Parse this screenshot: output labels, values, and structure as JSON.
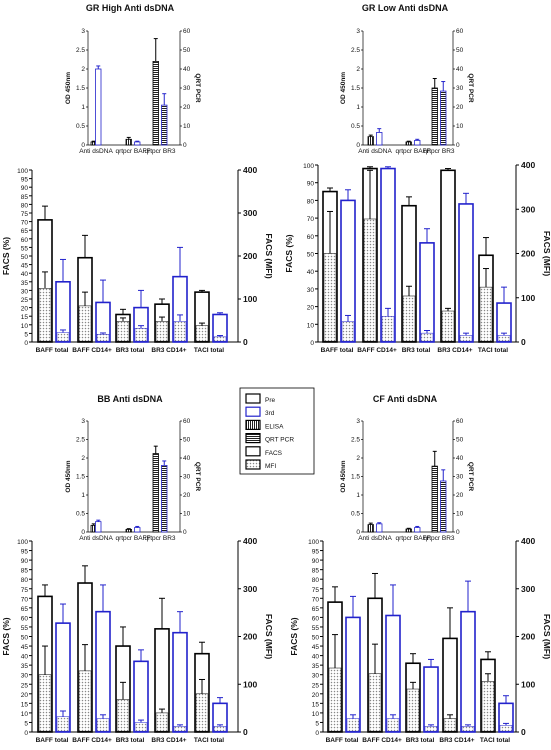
{
  "legend": {
    "items": [
      {
        "label": "Pre",
        "swatch": "black-outline"
      },
      {
        "label": "3rd",
        "swatch": "blue-outline"
      },
      {
        "label": "ELISA",
        "swatch": "vertical-hatch"
      },
      {
        "label": "QRT PCR",
        "swatch": "horizontal-hatch"
      },
      {
        "label": "FACS",
        "swatch": "plain"
      },
      {
        "label": "MFI",
        "swatch": "dots"
      }
    ],
    "placement": "center"
  },
  "colors": {
    "pre": "#000000",
    "third": "#2222cc",
    "mfi_dots": "#888888"
  },
  "chart_data": [
    {
      "panel": "GR High Anti dsDNA",
      "type": "bar",
      "title": "GR High Anti dsDNA",
      "upper": {
        "categories": [
          "Anti dsDNA",
          "qrtpcr BAFF",
          "qrtpcr BR3"
        ],
        "ylabel": "OD 450nm",
        "ylim": [
          0,
          3
        ],
        "y_ticks": [
          0,
          0.5,
          1,
          1.5,
          2,
          2.5,
          3
        ],
        "y2label": "QRT PCR",
        "y2lim": [
          0,
          60
        ],
        "y2_ticks": [
          0,
          10,
          20,
          30,
          40,
          50,
          60
        ],
        "pre": [
          {
            "v": 0.08,
            "e": 0.02
          },
          {
            "v": 0.15,
            "e": 0.05
          },
          {
            "v": 2.2,
            "e": 0.6
          }
        ],
        "third": [
          {
            "v": 2.0,
            "e": 0.08
          },
          {
            "v": 0.08,
            "e": 0.02
          },
          {
            "v": 1.05,
            "e": 0.3
          }
        ]
      },
      "lower": {
        "categories": [
          "BAFF total",
          "BAFF CD14+",
          "BR3 total",
          "BR3 CD14+",
          "TACI total"
        ],
        "ylabel": "FACS (%)",
        "ylim": [
          0,
          100
        ],
        "y_ticks": [
          0,
          5,
          10,
          15,
          20,
          25,
          30,
          35,
          40,
          45,
          50,
          55,
          60,
          65,
          70,
          75,
          80,
          85,
          90,
          95,
          100
        ],
        "y2label": "FACS (MFI)",
        "y2lim": [
          0,
          400
        ],
        "y2_ticks": [
          0,
          100,
          200,
          300,
          400
        ],
        "pre": [
          {
            "v": 71,
            "e": 8
          },
          {
            "v": 49,
            "e": 13
          },
          {
            "v": 16,
            "e": 3
          },
          {
            "v": 22,
            "e": 3
          },
          {
            "v": 29,
            "e": 1
          }
        ],
        "third": [
          {
            "v": 35,
            "e": 13
          },
          {
            "v": 23,
            "e": 13
          },
          {
            "v": 20,
            "e": 10
          },
          {
            "v": 38,
            "e": 17
          },
          {
            "v": 16,
            "e": 1
          }
        ],
        "pre_mfi": [
          {
            "v": 125,
            "e": 38
          },
          {
            "v": 84,
            "e": 32
          },
          {
            "v": 48,
            "e": 8
          },
          {
            "v": 48,
            "e": 10
          },
          {
            "v": 38,
            "e": 6
          }
        ],
        "third_mfi": [
          {
            "v": 22,
            "e": 6
          },
          {
            "v": 18,
            "e": 3
          },
          {
            "v": 32,
            "e": 6
          },
          {
            "v": 48,
            "e": 15
          },
          {
            "v": 12,
            "e": 3
          }
        ]
      }
    },
    {
      "panel": "GR Low Anti dsDNA",
      "type": "bar",
      "title": "GR Low Anti dsDNA",
      "upper": {
        "categories": [
          "Anti dsDNA",
          "qrtpcr BAFF",
          "qrtpcr BR3"
        ],
        "ylabel": "OD 450nm",
        "ylim": [
          0,
          3
        ],
        "y_ticks": [
          0,
          0.5,
          1,
          1.5,
          2,
          2.5,
          3
        ],
        "y2label": "QRT PCR",
        "y2lim": [
          0,
          60
        ],
        "y2_ticks": [
          0,
          10,
          20,
          30,
          40,
          50,
          60
        ],
        "pre": [
          {
            "v": 0.22,
            "e": 0.04
          },
          {
            "v": 0.08,
            "e": 0.02
          },
          {
            "v": 1.5,
            "e": 0.25
          }
        ],
        "third": [
          {
            "v": 0.33,
            "e": 0.1
          },
          {
            "v": 0.12,
            "e": 0.03
          },
          {
            "v": 1.42,
            "e": 0.25
          }
        ]
      },
      "lower": {
        "categories": [
          "BAFF total",
          "BAFF CD14+",
          "BR3 total",
          "BR3 CD14+",
          "TACI total"
        ],
        "ylabel": "FACS (%)",
        "ylim": [
          0,
          100
        ],
        "y_ticks": [
          0,
          10,
          20,
          30,
          40,
          50,
          60,
          70,
          80,
          90,
          100
        ],
        "y2label": "FACS (MFI)",
        "y2lim": [
          0,
          400
        ],
        "y2_ticks": [
          0,
          100,
          200,
          300,
          400
        ],
        "pre": [
          {
            "v": 85,
            "e": 2
          },
          {
            "v": 98,
            "e": 1
          },
          {
            "v": 77,
            "e": 5
          },
          {
            "v": 97,
            "e": 1
          },
          {
            "v": 49,
            "e": 10
          }
        ],
        "third": [
          {
            "v": 80,
            "e": 6
          },
          {
            "v": 98,
            "e": 1
          },
          {
            "v": 56,
            "e": 8
          },
          {
            "v": 78,
            "e": 6
          },
          {
            "v": 22,
            "e": 9
          }
        ],
        "pre_mfi": [
          {
            "v": 200,
            "e": 95
          },
          {
            "v": 278,
            "e": 110
          },
          {
            "v": 104,
            "e": 22
          },
          {
            "v": 70,
            "e": 6
          },
          {
            "v": 124,
            "e": 42
          }
        ],
        "third_mfi": [
          {
            "v": 46,
            "e": 14
          },
          {
            "v": 58,
            "e": 18
          },
          {
            "v": 20,
            "e": 6
          },
          {
            "v": 15,
            "e": 5
          },
          {
            "v": 15,
            "e": 5
          }
        ]
      }
    },
    {
      "panel": "BB Anti dsDNA",
      "type": "bar",
      "title": "BB Anti dsDNA",
      "upper": {
        "categories": [
          "Anti dsDNA",
          "qrtpcr BAFF",
          "qrtpcr BR3"
        ],
        "ylabel": "OD 450nm",
        "ylim": [
          0,
          3
        ],
        "y_ticks": [
          0,
          0.5,
          1,
          1.5,
          2,
          2.5,
          3
        ],
        "y2label": "QRT PCR",
        "y2lim": [
          0,
          60
        ],
        "y2_ticks": [
          0,
          10,
          20,
          30,
          40,
          50,
          60
        ],
        "pre": [
          {
            "v": 0.18,
            "e": 0.04
          },
          {
            "v": 0.07,
            "e": 0.02
          },
          {
            "v": 2.12,
            "e": 0.2
          }
        ],
        "third": [
          {
            "v": 0.28,
            "e": 0.04
          },
          {
            "v": 0.12,
            "e": 0.03
          },
          {
            "v": 1.8,
            "e": 0.12
          }
        ]
      },
      "lower": {
        "categories": [
          "BAFF total",
          "BAFF CD14+",
          "BR3 total",
          "BR3 CD14+",
          "TACI total"
        ],
        "ylabel": "FACS (%)",
        "ylim": [
          0,
          100
        ],
        "y_ticks": [
          0,
          5,
          10,
          15,
          20,
          25,
          30,
          35,
          40,
          45,
          50,
          55,
          60,
          65,
          70,
          75,
          80,
          85,
          90,
          95,
          100
        ],
        "y2label": "FACS (MFI)",
        "y2lim": [
          0,
          400
        ],
        "y2_ticks": [
          0,
          100,
          200,
          300,
          400
        ],
        "pre": [
          {
            "v": 71,
            "e": 6
          },
          {
            "v": 78,
            "e": 9
          },
          {
            "v": 45,
            "e": 10
          },
          {
            "v": 54,
            "e": 16
          },
          {
            "v": 41,
            "e": 6
          }
        ],
        "third": [
          {
            "v": 57,
            "e": 10
          },
          {
            "v": 63,
            "e": 14
          },
          {
            "v": 37,
            "e": 6
          },
          {
            "v": 52,
            "e": 11
          },
          {
            "v": 15,
            "e": 3
          }
        ],
        "pre_mfi": [
          {
            "v": 120,
            "e": 60
          },
          {
            "v": 128,
            "e": 55
          },
          {
            "v": 68,
            "e": 36
          },
          {
            "v": 40,
            "e": 8
          },
          {
            "v": 80,
            "e": 30
          }
        ],
        "third_mfi": [
          {
            "v": 32,
            "e": 12
          },
          {
            "v": 28,
            "e": 8
          },
          {
            "v": 20,
            "e": 5
          },
          {
            "v": 12,
            "e": 3
          },
          {
            "v": 12,
            "e": 3
          }
        ]
      }
    },
    {
      "panel": "CF Anti dsDNA",
      "type": "bar",
      "title": "CF Anti dsDNA",
      "upper": {
        "categories": [
          "Anti dsDNA",
          "qrtpcr BAFF",
          "qrtpcr BR3"
        ],
        "ylabel": "OD 450nm",
        "ylim": [
          0,
          3
        ],
        "y_ticks": [
          0,
          0.5,
          1,
          1.5,
          2,
          2.5,
          3
        ],
        "y2label": "QRT PCR",
        "y2lim": [
          0,
          60
        ],
        "y2_ticks": [
          0,
          10,
          20,
          30,
          40,
          50,
          60
        ],
        "pre": [
          {
            "v": 0.2,
            "e": 0.04
          },
          {
            "v": 0.08,
            "e": 0.02
          },
          {
            "v": 1.78,
            "e": 0.4
          }
        ],
        "third": [
          {
            "v": 0.22,
            "e": 0.03
          },
          {
            "v": 0.12,
            "e": 0.03
          },
          {
            "v": 1.38,
            "e": 0.3
          }
        ]
      },
      "lower": {
        "categories": [
          "BAFF total",
          "BAFF CD14+",
          "BR3 total",
          "BR3 CD14+",
          "TACI total"
        ],
        "ylabel": "FACS (%)",
        "ylim": [
          0,
          100
        ],
        "y_ticks": [
          0,
          5,
          10,
          15,
          20,
          25,
          30,
          35,
          40,
          45,
          50,
          55,
          60,
          65,
          70,
          75,
          80,
          85,
          90,
          95,
          100
        ],
        "y2label": "FACS (MFI)",
        "y2lim": [
          0,
          400
        ],
        "y2_ticks": [
          0,
          100,
          200,
          300,
          400
        ],
        "pre": [
          {
            "v": 68,
            "e": 8
          },
          {
            "v": 70,
            "e": 13
          },
          {
            "v": 36,
            "e": 5
          },
          {
            "v": 49,
            "e": 16
          },
          {
            "v": 38,
            "e": 4
          }
        ],
        "third": [
          {
            "v": 60,
            "e": 11
          },
          {
            "v": 61,
            "e": 16
          },
          {
            "v": 34,
            "e": 4
          },
          {
            "v": 63,
            "e": 16
          },
          {
            "v": 15,
            "e": 4
          }
        ],
        "pre_mfi": [
          {
            "v": 134,
            "e": 70
          },
          {
            "v": 122,
            "e": 62
          },
          {
            "v": 90,
            "e": 14
          },
          {
            "v": 28,
            "e": 8
          },
          {
            "v": 106,
            "e": 16
          }
        ],
        "third_mfi": [
          {
            "v": 28,
            "e": 8
          },
          {
            "v": 28,
            "e": 8
          },
          {
            "v": 12,
            "e": 3
          },
          {
            "v": 12,
            "e": 3
          },
          {
            "v": 14,
            "e": 4
          }
        ]
      }
    }
  ]
}
